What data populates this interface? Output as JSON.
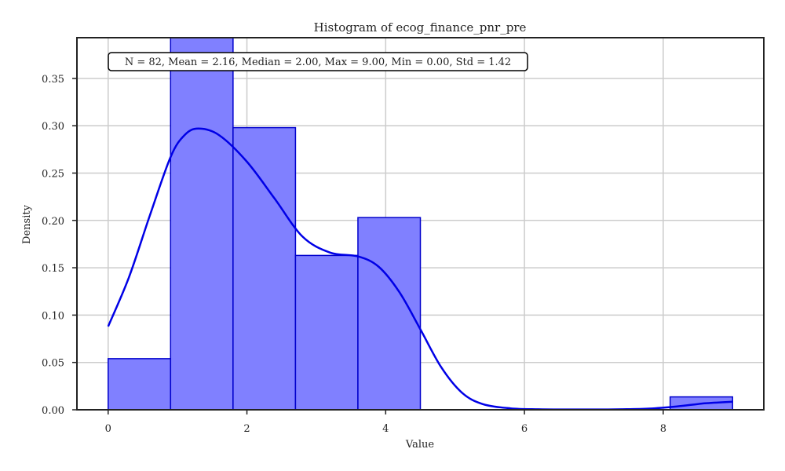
{
  "chart_data": {
    "type": "histogram",
    "title": "Histogram of ecog_finance_pnr_pre",
    "xlabel": "Value",
    "ylabel": "Density",
    "xlim": [
      -0.45,
      9.45
    ],
    "ylim": [
      0,
      0.393
    ],
    "xticks": [
      0,
      2,
      4,
      6,
      8
    ],
    "yticks": [
      0.0,
      0.05,
      0.1,
      0.15,
      0.2,
      0.25,
      0.3,
      0.35
    ],
    "xtick_labels": [
      "0",
      "2",
      "4",
      "6",
      "8"
    ],
    "ytick_labels": [
      "0.00",
      "0.05",
      "0.10",
      "0.15",
      "0.20",
      "0.25",
      "0.30",
      "0.35"
    ],
    "grid": true,
    "bins": [
      {
        "x0": 0.0,
        "x1": 0.9,
        "density": 0.054
      },
      {
        "x0": 0.9,
        "x1": 1.8,
        "density": 0.393
      },
      {
        "x0": 1.8,
        "x1": 2.7,
        "density": 0.298
      },
      {
        "x0": 2.7,
        "x1": 3.6,
        "density": 0.163
      },
      {
        "x0": 3.6,
        "x1": 4.5,
        "density": 0.203
      },
      {
        "x0": 4.5,
        "x1": 5.4,
        "density": 0.0
      },
      {
        "x0": 5.4,
        "x1": 6.3,
        "density": 0.0
      },
      {
        "x0": 6.3,
        "x1": 7.2,
        "density": 0.0
      },
      {
        "x0": 7.2,
        "x1": 8.1,
        "density": 0.0
      },
      {
        "x0": 8.1,
        "x1": 9.0,
        "density": 0.0136
      }
    ],
    "kde": {
      "x": [
        0.0,
        0.3,
        0.6,
        0.9,
        1.1,
        1.3,
        1.6,
        2.0,
        2.4,
        2.8,
        3.2,
        3.6,
        3.9,
        4.2,
        4.5,
        4.8,
        5.1,
        5.4,
        5.8,
        6.2,
        6.6,
        7.0,
        7.4,
        7.8,
        8.2,
        8.6,
        9.0
      ],
      "y": [
        0.088,
        0.14,
        0.205,
        0.267,
        0.29,
        0.297,
        0.29,
        0.262,
        0.223,
        0.183,
        0.166,
        0.162,
        0.151,
        0.124,
        0.085,
        0.045,
        0.018,
        0.006,
        0.0015,
        0.0005,
        0.0003,
        0.0003,
        0.0005,
        0.0012,
        0.0035,
        0.0068,
        0.0085
      ]
    },
    "colors": {
      "bar_fill": "#8080ff",
      "bar_edge": "#0000cc",
      "kde_line": "#0000e6",
      "grid": "#cccccc",
      "axes": "#222222"
    },
    "annotation": "N = 82, Mean = 2.16, Median = 2.00, Max = 9.00, Min = 0.00, Std = 1.42"
  }
}
